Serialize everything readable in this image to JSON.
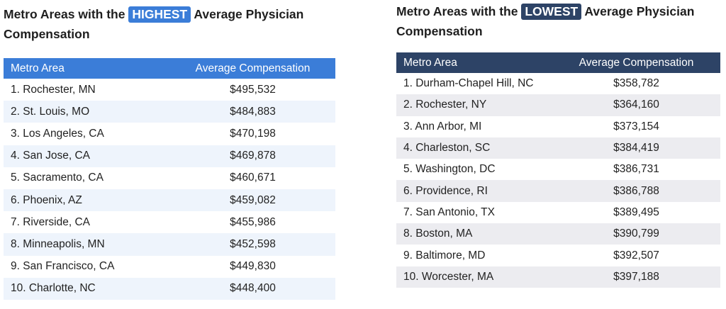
{
  "tables": [
    {
      "title": {
        "before": "Metro Areas with the",
        "badge": "HIGHEST",
        "after": "Average Physician Compensation"
      },
      "columns": [
        "Metro Area",
        "Average Compensation"
      ],
      "rows": [
        [
          "1. Rochester, MN",
          "$495,532"
        ],
        [
          "2. St. Louis, MO",
          "$484,883"
        ],
        [
          "3. Los Angeles, CA",
          "$470,198"
        ],
        [
          "4. San Jose, CA",
          "$469,878"
        ],
        [
          "5. Sacramento, CA",
          "$460,671"
        ],
        [
          "6. Phoenix, AZ",
          "$459,082"
        ],
        [
          "7. Riverside, CA",
          "$455,986"
        ],
        [
          "8. Minneapolis, MN",
          "$452,598"
        ],
        [
          "9. San Francisco, CA",
          "$449,830"
        ],
        [
          "10. Charlotte, NC",
          "$448,400"
        ]
      ]
    },
    {
      "title": {
        "before": "Metro Areas with the",
        "badge": "LOWEST",
        "after": "Average Physician Compensation"
      },
      "columns": [
        "Metro Area",
        "Average Compensation"
      ],
      "rows": [
        [
          "1. Durham-Chapel Hill, NC",
          "$358,782"
        ],
        [
          "2. Rochester, NY",
          "$364,160"
        ],
        [
          "3. Ann Arbor, MI",
          "$373,154"
        ],
        [
          "4. Charleston, SC",
          "$384,419"
        ],
        [
          "5. Washington, DC",
          "$386,731"
        ],
        [
          "6. Providence, RI",
          "$386,788"
        ],
        [
          "7. San Antonio, TX",
          "$389,495"
        ],
        [
          "8. Boston, MA",
          "$390,799"
        ],
        [
          "9. Baltimore, MD",
          "$392,507"
        ],
        [
          "10. Worcester, MA",
          "$397,188"
        ]
      ]
    }
  ]
}
